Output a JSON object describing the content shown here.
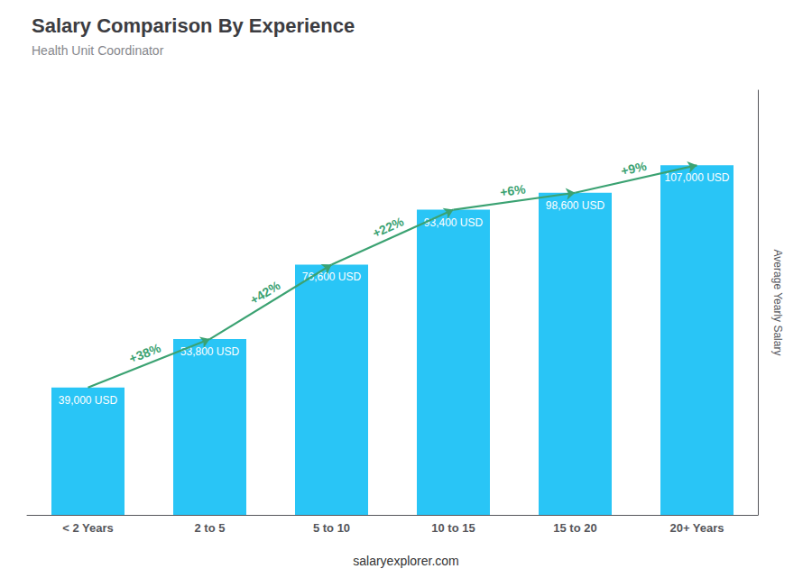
{
  "chart_data": {
    "type": "bar",
    "title": "Salary Comparison By Experience",
    "subtitle": "Health Unit Coordinator",
    "categories": [
      "< 2 Years",
      "2 to 5",
      "5 to 10",
      "10 to 15",
      "15 to 20",
      "20+ Years"
    ],
    "values": [
      39000,
      53800,
      76600,
      93400,
      98600,
      107000
    ],
    "value_labels": [
      "39,000 USD",
      "53,800 USD",
      "76,600 USD",
      "93,400 USD",
      "98,600 USD",
      "107,000 USD"
    ],
    "data_labels": true,
    "color": "#29c5f6",
    "ylabel": "Average Yearly Salary",
    "ylim": [
      0,
      130000
    ],
    "grid": false,
    "tick_labels": "x",
    "annotations": [
      "+38%",
      "+42%",
      "+22%",
      "+6%",
      "+9%"
    ],
    "footer": "salaryexplorer.com"
  }
}
